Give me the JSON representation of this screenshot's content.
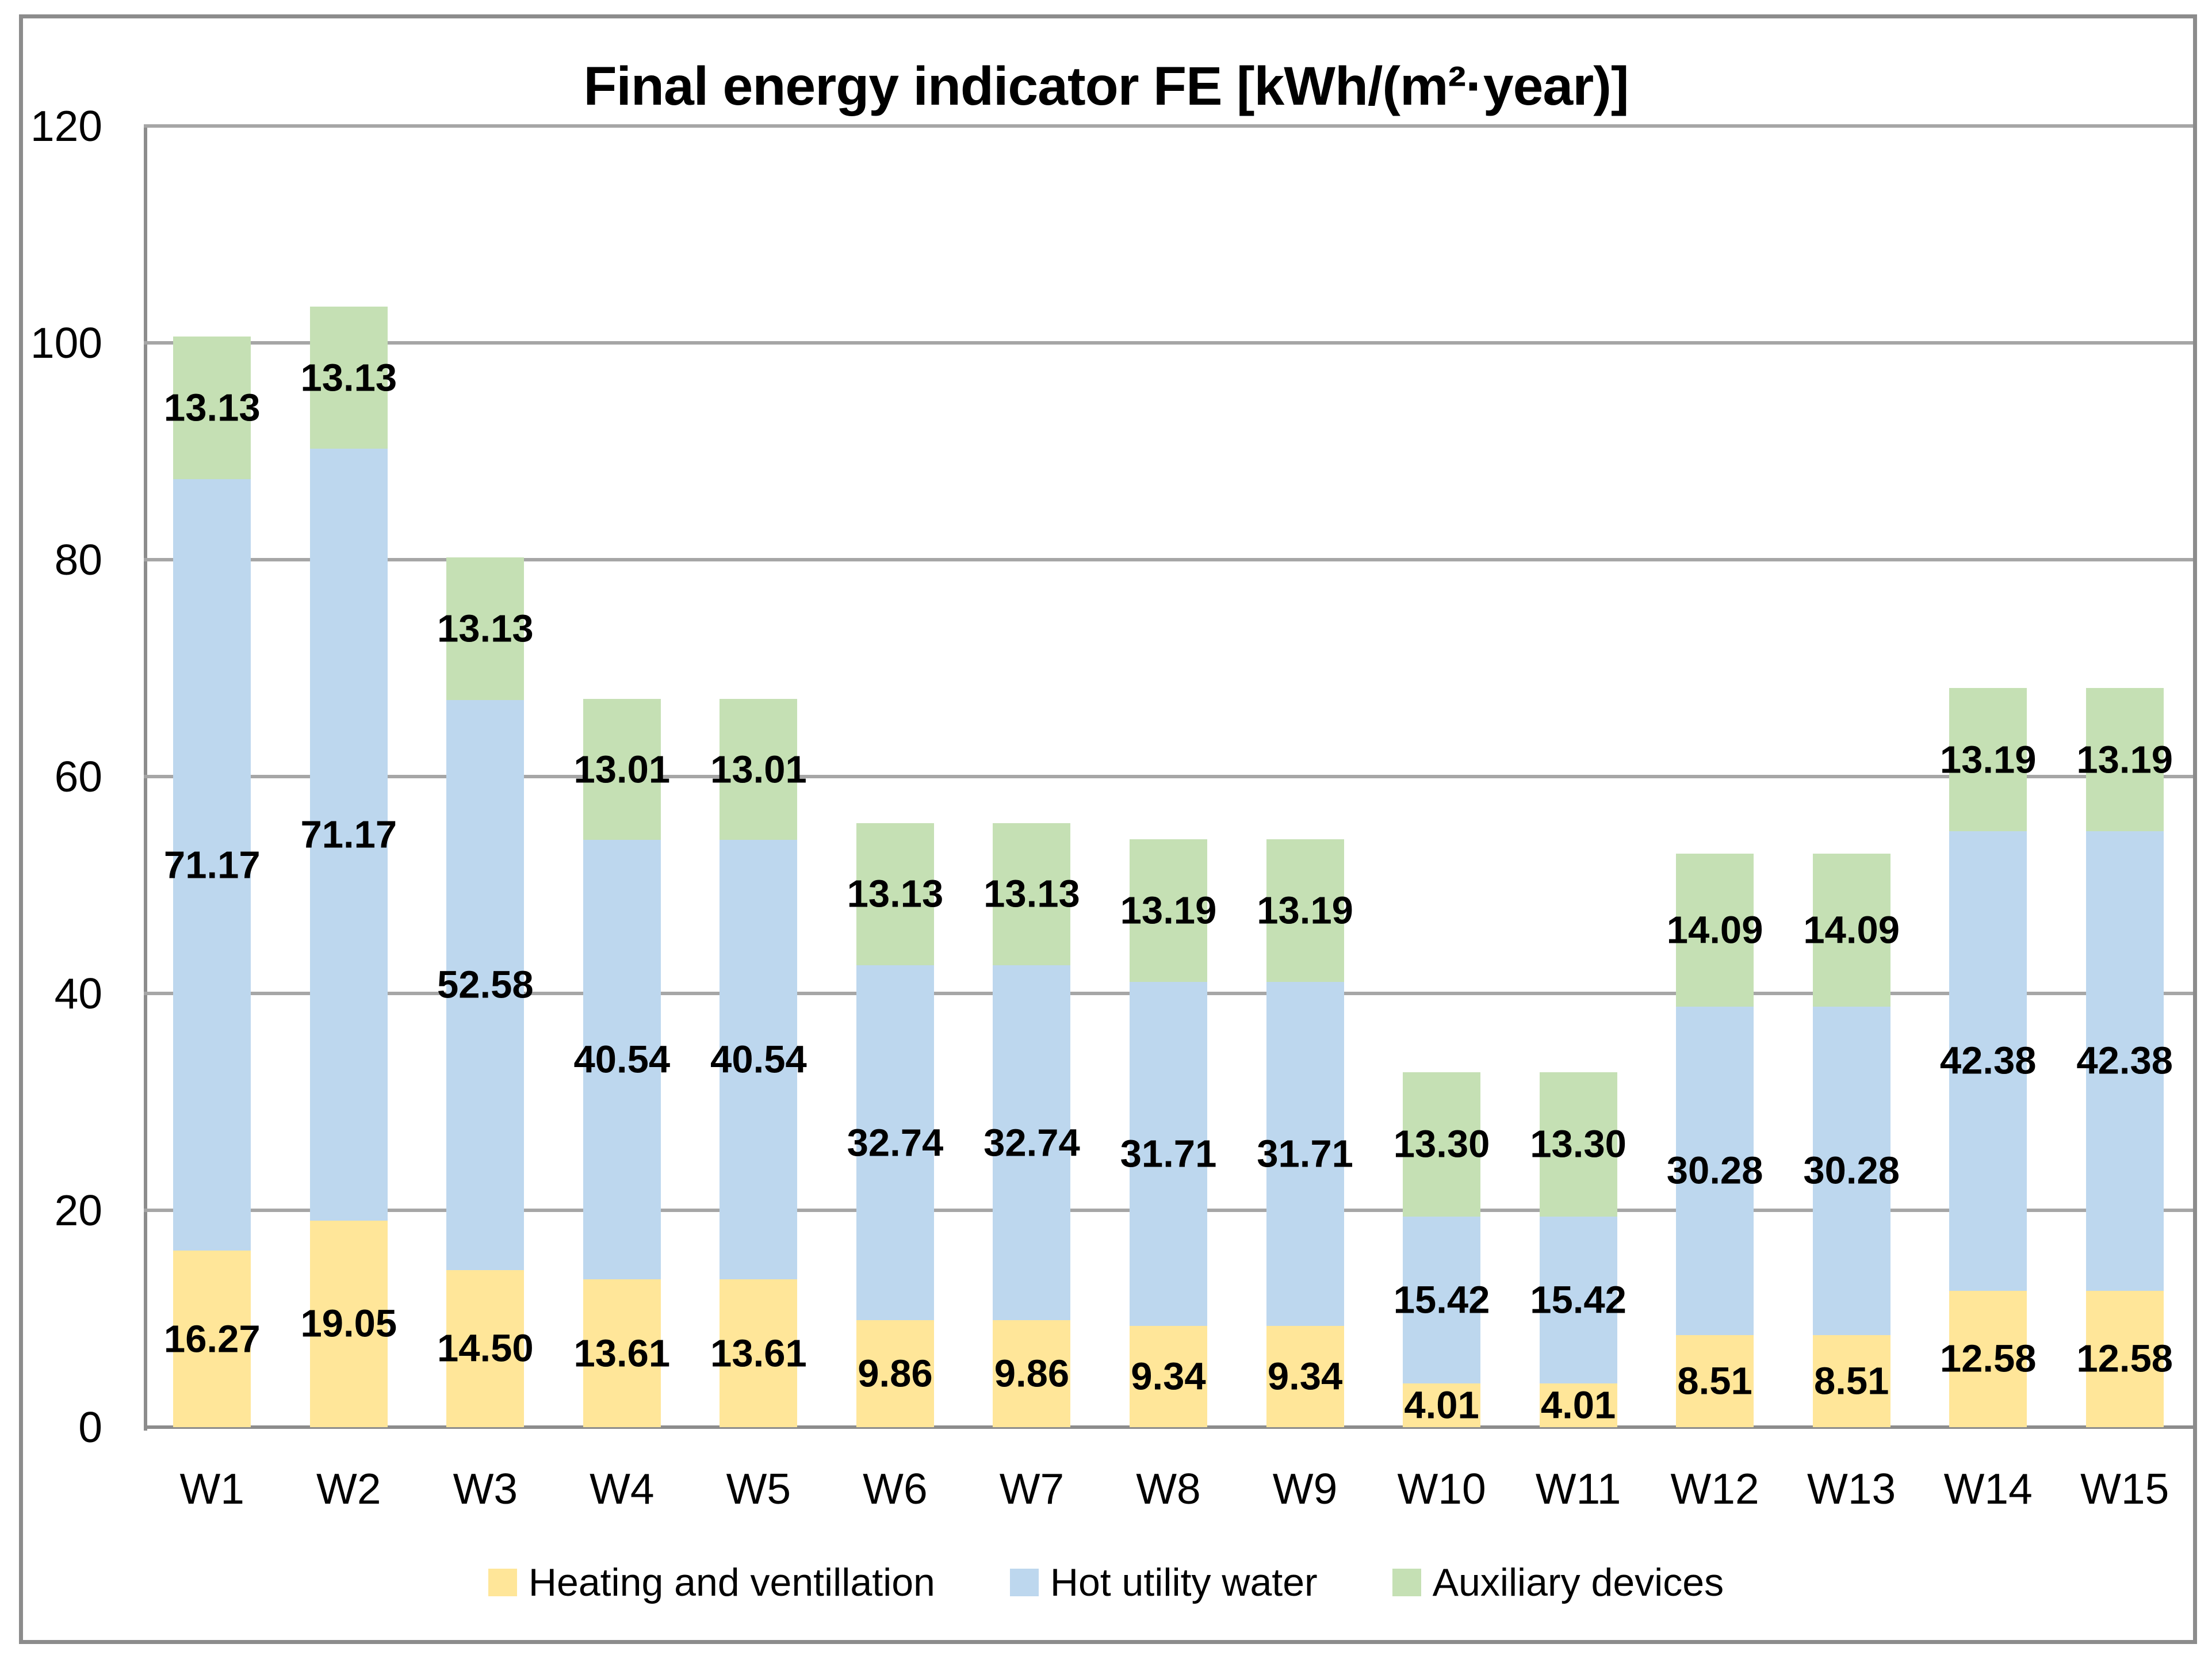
{
  "chart_data": {
    "type": "bar",
    "stacked": true,
    "title": "Final energy indicator FE [kWh/(m²·year)]",
    "categories": [
      "W1",
      "W2",
      "W3",
      "W4",
      "W5",
      "W6",
      "W7",
      "W8",
      "W9",
      "W10",
      "W11",
      "W12",
      "W13",
      "W14",
      "W15"
    ],
    "series": [
      {
        "name": "Heating and ventillation",
        "color": "#FFE699",
        "values": [
          16.27,
          19.05,
          14.5,
          13.61,
          13.61,
          9.86,
          9.86,
          9.34,
          9.34,
          4.01,
          4.01,
          8.51,
          8.51,
          12.58,
          12.58
        ]
      },
      {
        "name": "Hot utility water",
        "color": "#BDD7EE",
        "values": [
          71.17,
          71.17,
          52.58,
          40.54,
          40.54,
          32.74,
          32.74,
          31.71,
          31.71,
          15.42,
          15.42,
          30.28,
          30.28,
          42.38,
          42.38
        ]
      },
      {
        "name": "Auxiliary devices",
        "color": "#C5E0B4",
        "values": [
          13.13,
          13.13,
          13.13,
          13.01,
          13.01,
          13.13,
          13.13,
          13.19,
          13.19,
          13.3,
          13.3,
          14.09,
          14.09,
          13.19,
          13.19
        ]
      }
    ],
    "ylim": [
      0,
      120
    ],
    "yticks": [
      0,
      20,
      40,
      60,
      80,
      100,
      120
    ],
    "grid": true,
    "legend_position": "bottom",
    "data_label_format": "0.00",
    "colors": {
      "frame_and_axis": "#8C8C8C",
      "gridline": "#A6A6A6",
      "label_text": "#000000",
      "background": "#FFFFFF"
    }
  }
}
